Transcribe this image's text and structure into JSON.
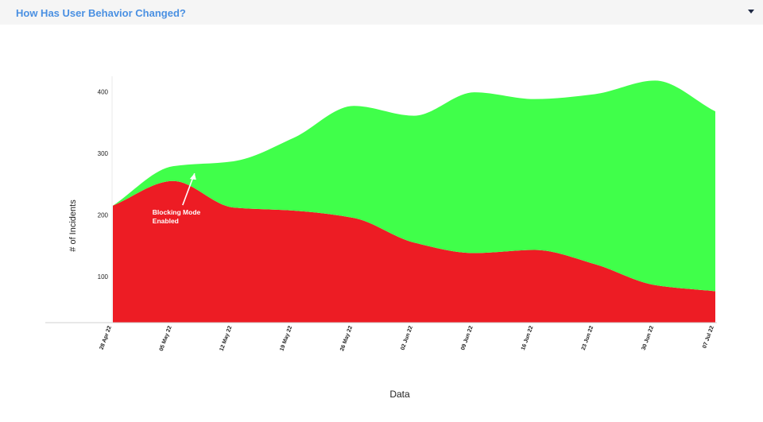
{
  "header": {
    "title": "How Has User Behavior Changed?",
    "menu_icon": "caret-down-icon"
  },
  "chart_data": {
    "type": "area",
    "title": "",
    "xlabel": "Data",
    "ylabel": "# of Incidents",
    "stacked": true,
    "ylim": [
      25,
      425
    ],
    "yticks": [
      100,
      200,
      300,
      400
    ],
    "categories": [
      "28 Apr 22",
      "05 May 22",
      "12 May 22",
      "19 May 22",
      "26 May 22",
      "02 Jun 22",
      "09 Jun 22",
      "16 Jun 22",
      "23 Jun 22",
      "30 Jun 22",
      "07 Jul 22"
    ],
    "series": [
      {
        "color": "#ed1c24",
        "values": [
          215,
          255,
          212,
          207,
          195,
          155,
          138,
          143,
          120,
          86,
          76
        ]
      },
      {
        "color": "#40ff4a",
        "values": [
          0,
          24,
          75,
          118,
          182,
          206,
          261,
          245,
          276,
          332,
          292
        ]
      }
    ],
    "annotation": {
      "text": [
        "Blocking Mode",
        "Enabled"
      ],
      "category": "05 May 22",
      "text_color": "#ffffff"
    },
    "grid": false
  }
}
